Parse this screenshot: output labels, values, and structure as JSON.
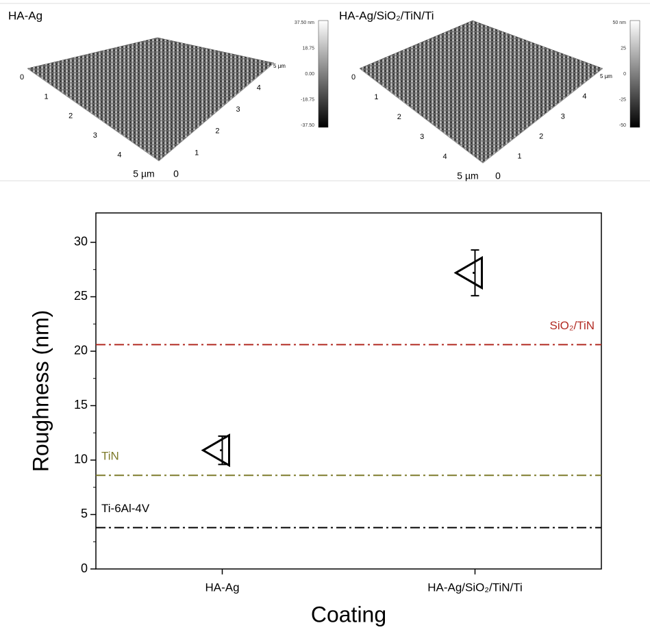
{
  "afm_panels": [
    {
      "title": "HA-Ag",
      "colorbar_ticks": [
        "37.50 nm",
        "18.75",
        "0.00",
        "-18.75",
        "-37.50"
      ],
      "left_axis_ticks": [
        "0",
        "1",
        "2",
        "3",
        "4",
        "5 µm"
      ],
      "right_axis_ticks": [
        "0",
        "1",
        "2",
        "3",
        "4",
        "5 µm"
      ]
    },
    {
      "title": "HA-Ag/SiO₂/TiN/Ti",
      "colorbar_ticks": [
        "50 nm",
        "25",
        "0",
        "-25",
        "-50"
      ],
      "left_axis_ticks": [
        "0",
        "1",
        "2",
        "3",
        "4",
        "5 µm"
      ],
      "right_axis_ticks": [
        "0",
        "1",
        "2",
        "3",
        "4",
        "5 µm"
      ]
    }
  ],
  "chart_data": {
    "type": "scatter",
    "x_label": "Coating",
    "y_label": "Roughness (nm)",
    "categories": [
      "HA-Ag",
      "HA-Ag/SiO₂/TiN/Ti"
    ],
    "values": [
      10.9,
      27.2
    ],
    "errors": [
      1.3,
      2.1
    ],
    "color": "#000000",
    "ylim": [
      0,
      32.7
    ],
    "yticks": [
      0,
      5,
      10,
      15,
      20,
      25,
      30
    ],
    "reference_lines": [
      {
        "name": "SiO₂/TiN",
        "value": 20.6,
        "color": "#b22a22"
      },
      {
        "name": "TiN",
        "value": 8.6,
        "color": "#7d7a2a"
      },
      {
        "name": "Ti-6Al-4V",
        "value": 3.8,
        "color": "#000000"
      }
    ]
  }
}
